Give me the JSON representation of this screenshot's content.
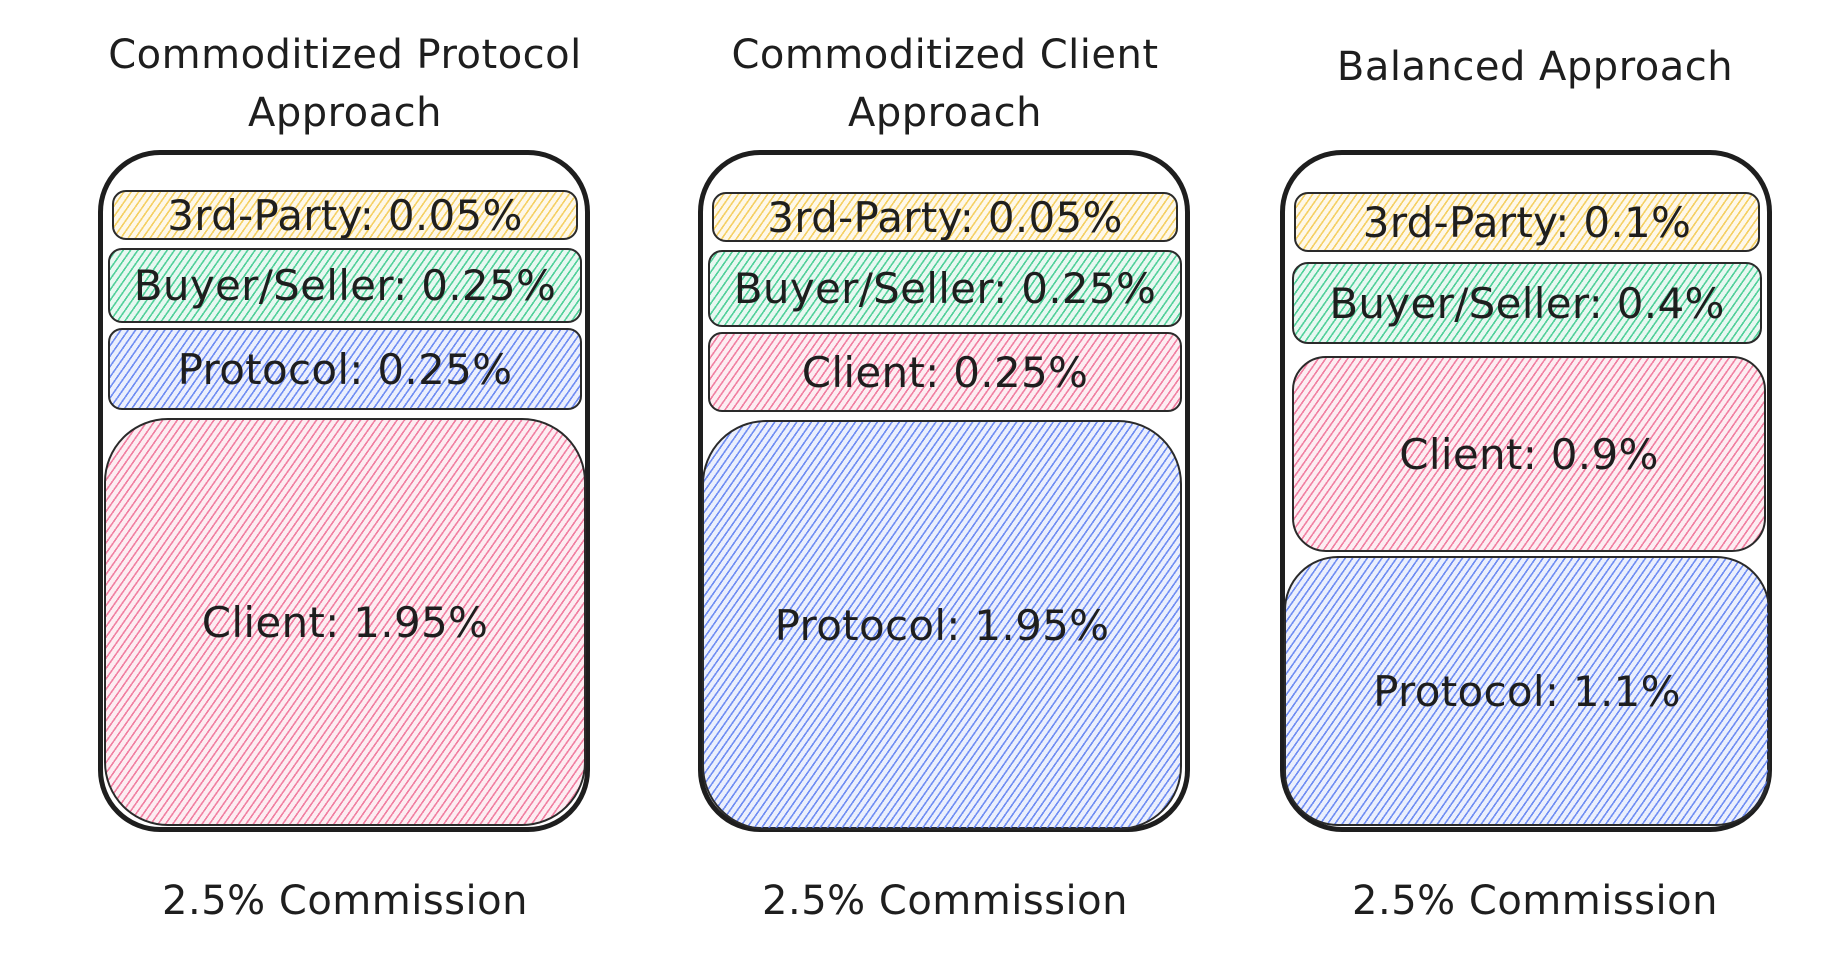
{
  "colors": {
    "third_party": "#f3c94d",
    "buyer_seller": "#38c98b",
    "protocol": "#5b7cf0",
    "client": "#ee6d94",
    "outline": "#1e1e1e"
  },
  "approaches": [
    {
      "title": "Commoditized Protocol\nApproach",
      "commission": "2.5% Commission",
      "segments": [
        {
          "label": "3rd-Party: 0.05%",
          "category": "third_party",
          "percent": 0.05
        },
        {
          "label": "Buyer/Seller: 0.25%",
          "category": "buyer_seller",
          "percent": 0.25
        },
        {
          "label": "Protocol: 0.25%",
          "category": "protocol",
          "percent": 0.25
        },
        {
          "label": "Client: 1.95%",
          "category": "client",
          "percent": 1.95
        }
      ]
    },
    {
      "title": "Commoditized Client\nApproach",
      "commission": "2.5% Commission",
      "segments": [
        {
          "label": "3rd-Party: 0.05%",
          "category": "third_party",
          "percent": 0.05
        },
        {
          "label": "Buyer/Seller: 0.25%",
          "category": "buyer_seller",
          "percent": 0.25
        },
        {
          "label": "Client: 0.25%",
          "category": "client",
          "percent": 0.25
        },
        {
          "label": "Protocol: 1.95%",
          "category": "protocol",
          "percent": 1.95
        }
      ]
    },
    {
      "title": "Balanced Approach",
      "commission": "2.5% Commission",
      "segments": [
        {
          "label": "3rd-Party: 0.1%",
          "category": "third_party",
          "percent": 0.1
        },
        {
          "label": "Buyer/Seller: 0.4%",
          "category": "buyer_seller",
          "percent": 0.4
        },
        {
          "label": "Client: 0.9%",
          "category": "client",
          "percent": 0.9
        },
        {
          "label": "Protocol: 1.1%",
          "category": "protocol",
          "percent": 1.1
        }
      ]
    }
  ]
}
